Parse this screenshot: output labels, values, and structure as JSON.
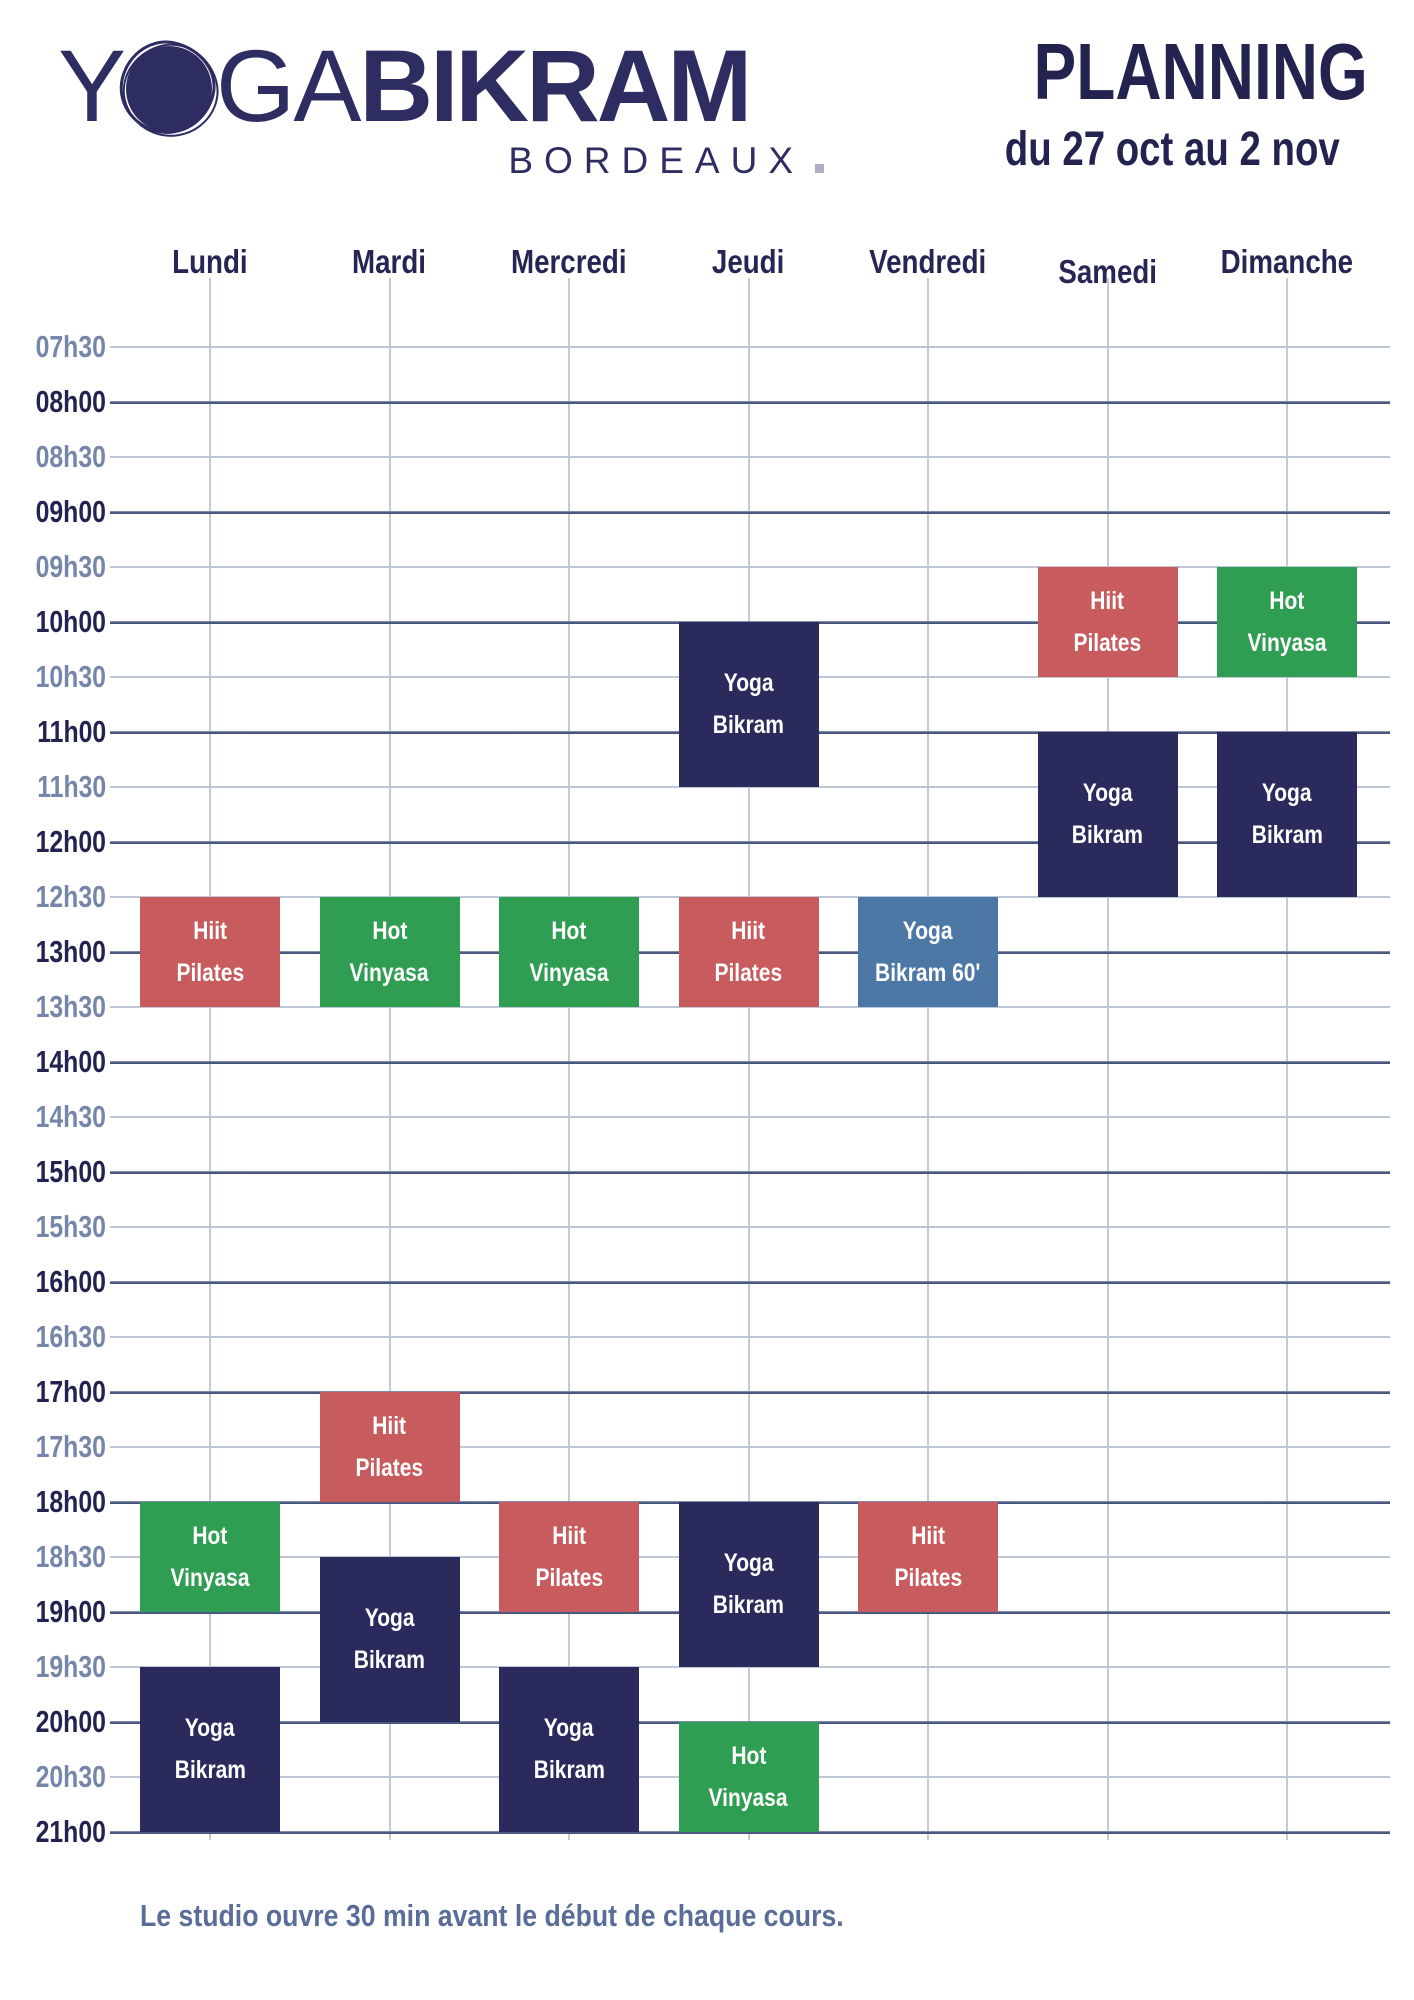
{
  "logo": {
    "part1": "Y",
    "part2": "GA",
    "part3": "BIKRAM",
    "subtitle": "BORDEAUX"
  },
  "title": {
    "main": "PLANNING",
    "date_range": "du 27 oct au 2 nov"
  },
  "palette": {
    "navy": "#2b2a5c",
    "red": "#c75b5d",
    "green": "#2f9e52",
    "steel_blue": "#4d78a5",
    "label_dark": "#232350",
    "label_light": "#7586a8",
    "logo_navy": "#2e2d62",
    "footer_text": "#5a6d99",
    "block_text": "#ffffff"
  },
  "schedule": {
    "days": [
      "Lundi",
      "Mardi",
      "Mercredi",
      "Jeudi",
      "Vendredi",
      "Samedi",
      "Dimanche"
    ],
    "times": [
      "07h30",
      "08h00",
      "08h30",
      "09h00",
      "09h30",
      "10h00",
      "10h30",
      "11h00",
      "11h30",
      "12h00",
      "12h30",
      "13h00",
      "13h30",
      "14h00",
      "14h30",
      "15h00",
      "15h30",
      "16h00",
      "16h30",
      "17h00",
      "17h30",
      "18h00",
      "18h30",
      "19h00",
      "19h30",
      "20h00",
      "20h30",
      "21h00"
    ],
    "classes": [
      {
        "day": "Samedi",
        "start": "09h30",
        "end": "10h30",
        "name": "Hiit Pilates",
        "lines": [
          "Hiit",
          "Pilates"
        ],
        "color_key": "red"
      },
      {
        "day": "Dimanche",
        "start": "09h30",
        "end": "10h30",
        "name": "Hot Vinyasa",
        "lines": [
          "Hot",
          "Vinyasa"
        ],
        "color_key": "green"
      },
      {
        "day": "Jeudi",
        "start": "10h00",
        "end": "11h30",
        "name": "Yoga Bikram",
        "lines": [
          "Yoga",
          "Bikram"
        ],
        "color_key": "navy"
      },
      {
        "day": "Samedi",
        "start": "11h00",
        "end": "12h30",
        "name": "Yoga Bikram",
        "lines": [
          "Yoga",
          "Bikram"
        ],
        "color_key": "navy"
      },
      {
        "day": "Dimanche",
        "start": "11h00",
        "end": "12h30",
        "name": "Yoga Bikram",
        "lines": [
          "Yoga",
          "Bikram"
        ],
        "color_key": "navy"
      },
      {
        "day": "Lundi",
        "start": "12h30",
        "end": "13h30",
        "name": "Hiit Pilates",
        "lines": [
          "Hiit",
          "Pilates"
        ],
        "color_key": "red"
      },
      {
        "day": "Mardi",
        "start": "12h30",
        "end": "13h30",
        "name": "Hot Vinyasa",
        "lines": [
          "Hot",
          "Vinyasa"
        ],
        "color_key": "green"
      },
      {
        "day": "Mercredi",
        "start": "12h30",
        "end": "13h30",
        "name": "Hot Vinyasa",
        "lines": [
          "Hot",
          "Vinyasa"
        ],
        "color_key": "green"
      },
      {
        "day": "Jeudi",
        "start": "12h30",
        "end": "13h30",
        "name": "Hiit Pilates",
        "lines": [
          "Hiit",
          "Pilates"
        ],
        "color_key": "red"
      },
      {
        "day": "Vendredi",
        "start": "12h30",
        "end": "13h30",
        "name": "Yoga Bikram 60'",
        "lines": [
          "Yoga",
          "Bikram 60'"
        ],
        "color_key": "steel_blue"
      },
      {
        "day": "Mardi",
        "start": "17h00",
        "end": "18h00",
        "name": "Hiit Pilates",
        "lines": [
          "Hiit",
          "Pilates"
        ],
        "color_key": "red"
      },
      {
        "day": "Lundi",
        "start": "18h00",
        "end": "19h00",
        "name": "Hot Vinyasa",
        "lines": [
          "Hot",
          "Vinyasa"
        ],
        "color_key": "green"
      },
      {
        "day": "Mercredi",
        "start": "18h00",
        "end": "19h00",
        "name": "Hiit Pilates",
        "lines": [
          "Hiit",
          "Pilates"
        ],
        "color_key": "red"
      },
      {
        "day": "Jeudi",
        "start": "18h00",
        "end": "19h30",
        "name": "Yoga Bikram",
        "lines": [
          "Yoga",
          "Bikram"
        ],
        "color_key": "navy"
      },
      {
        "day": "Vendredi",
        "start": "18h00",
        "end": "19h00",
        "name": "Hiit Pilates",
        "lines": [
          "Hiit",
          "Pilates"
        ],
        "color_key": "red"
      },
      {
        "day": "Mardi",
        "start": "18h30",
        "end": "20h00",
        "name": "Yoga Bikram",
        "lines": [
          "Yoga",
          "Bikram"
        ],
        "color_key": "navy"
      },
      {
        "day": "Lundi",
        "start": "19h30",
        "end": "21h00",
        "name": "Yoga Bikram",
        "lines": [
          "Yoga",
          "Bikram"
        ],
        "color_key": "navy"
      },
      {
        "day": "Mercredi",
        "start": "19h30",
        "end": "21h00",
        "name": "Yoga Bikram",
        "lines": [
          "Yoga",
          "Bikram"
        ],
        "color_key": "navy"
      },
      {
        "day": "Jeudi",
        "start": "20h00",
        "end": "21h00",
        "name": "Hot Vinyasa",
        "lines": [
          "Hot",
          "Vinyasa"
        ],
        "color_key": "green"
      }
    ]
  },
  "footer": {
    "note": "Le studio ouvre 30 min avant le début de chaque cours."
  }
}
